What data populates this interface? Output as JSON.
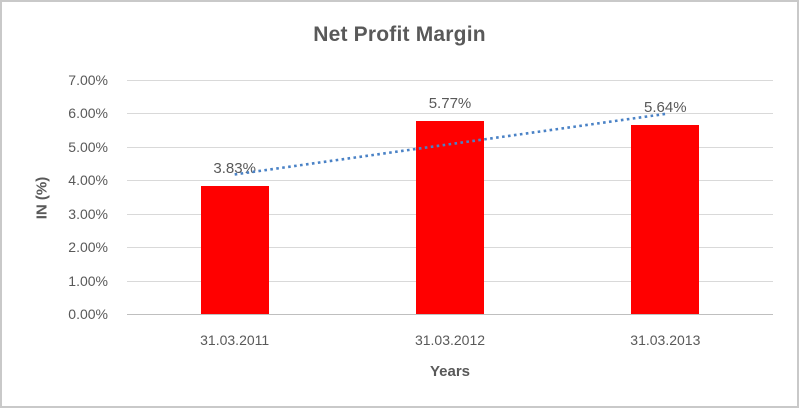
{
  "window": {
    "background": "#FFFFFF",
    "border_color": "#C9C9C9"
  },
  "chart_data": {
    "type": "bar",
    "title": "Net Profit Margin",
    "xlabel": "Years",
    "ylabel": "IN (%)",
    "categories": [
      "31.03.2011",
      "31.03.2012",
      "31.03.2013"
    ],
    "values": [
      3.83,
      5.77,
      5.64
    ],
    "data_labels": [
      "3.83%",
      "5.77%",
      "5.64%"
    ],
    "ylim": [
      0,
      7
    ],
    "ytick_step": 1,
    "ytick_labels": [
      "0.00%",
      "1.00%",
      "2.00%",
      "3.00%",
      "4.00%",
      "5.00%",
      "6.00%",
      "7.00%"
    ],
    "grid": true,
    "legend": "none",
    "bar_color": "#FF0000",
    "text_color": "#595959",
    "gridline_color": "#D9D9D9",
    "axisline_color": "#BFBFBF",
    "trendline": {
      "type": "linear",
      "style": "dotted",
      "color": "#4A82C6",
      "start_value": 4.18,
      "end_value": 5.99
    }
  }
}
